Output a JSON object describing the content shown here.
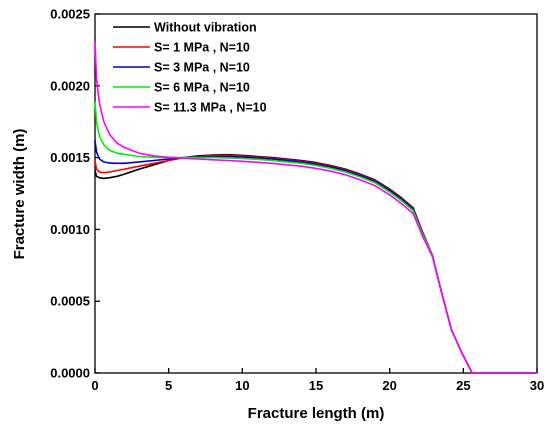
{
  "chart_data": {
    "type": "line",
    "xlabel": "Fracture length (m)",
    "ylabel": "Fracture width (m)",
    "xlim": [
      0,
      30
    ],
    "ylim": [
      0,
      0.0025
    ],
    "xticks": [
      0,
      5,
      10,
      15,
      20,
      25,
      30
    ],
    "xtick_labels": [
      "0",
      "5",
      "10",
      "15",
      "20",
      "25",
      "30"
    ],
    "yticks": [
      0,
      0.0005,
      0.001,
      0.0015,
      0.002,
      0.0025
    ],
    "ytick_labels": [
      "0.0000",
      "0.0005",
      "0.0010",
      "0.0015",
      "0.0020",
      "0.0025"
    ],
    "grid": false,
    "legend_position": "top-left",
    "series": [
      {
        "name": "Without vibration",
        "color": "#000000",
        "x": [
          0,
          0.1,
          0.3,
          0.6,
          1,
          1.5,
          2,
          3,
          4,
          5,
          6,
          7,
          8,
          9,
          10,
          11,
          12,
          13,
          14,
          15,
          16,
          17,
          18,
          19,
          20,
          20.8,
          21.6,
          22.2,
          22.9,
          23.5,
          24.2,
          24.9,
          25.6,
          26,
          27,
          28,
          29,
          30
        ],
        "y": [
          0.00141,
          0.00137,
          0.00136,
          0.001355,
          0.00136,
          0.00137,
          0.001385,
          0.00142,
          0.00145,
          0.00148,
          0.0015,
          0.001512,
          0.001518,
          0.00152,
          0.001515,
          0.001508,
          0.0015,
          0.00149,
          0.00148,
          0.001465,
          0.001445,
          0.00142,
          0.001385,
          0.001345,
          0.00128,
          0.00122,
          0.00115,
          0.00099,
          0.00082,
          0.00057,
          0.0003,
          0.00014,
          0.0,
          0.0,
          0.0,
          0.0,
          0.0,
          0.0
        ]
      },
      {
        "name": "S= 1 MPa , N=10",
        "color": "#ff0000",
        "x": [
          0,
          0.1,
          0.3,
          0.6,
          1,
          1.5,
          2,
          3,
          4,
          5,
          6,
          7,
          8,
          9,
          10,
          11,
          12,
          13,
          14,
          15,
          16,
          17,
          18,
          19,
          20,
          20.8,
          21.6,
          22.2,
          22.9,
          23.5,
          24.2,
          24.9,
          25.6,
          26,
          27,
          28,
          29,
          30
        ],
        "y": [
          0.00148,
          0.00142,
          0.0014,
          0.001395,
          0.0014,
          0.00141,
          0.00142,
          0.00144,
          0.00146,
          0.00148,
          0.0015,
          0.001508,
          0.001513,
          0.001515,
          0.00151,
          0.001503,
          0.001495,
          0.001485,
          0.001475,
          0.00146,
          0.00144,
          0.001415,
          0.00138,
          0.00134,
          0.001275,
          0.001215,
          0.001145,
          0.000985,
          0.00082,
          0.00057,
          0.0003,
          0.00014,
          0.0,
          0.0,
          0.0,
          0.0,
          0.0,
          0.0
        ]
      },
      {
        "name": "S= 3 MPa , N=10",
        "color": "#0000cc",
        "x": [
          0,
          0.1,
          0.3,
          0.6,
          1,
          1.5,
          2,
          3,
          4,
          5,
          6,
          7,
          8,
          9,
          10,
          11,
          12,
          13,
          14,
          15,
          16,
          17,
          18,
          19,
          20,
          20.8,
          21.6,
          22.2,
          22.9,
          23.5,
          24.2,
          24.9,
          25.6,
          26,
          27,
          28,
          29,
          30
        ],
        "y": [
          0.00162,
          0.00154,
          0.00149,
          0.00147,
          0.001462,
          0.00146,
          0.00146,
          0.00147,
          0.00148,
          0.00149,
          0.0015,
          0.001505,
          0.001508,
          0.001508,
          0.001504,
          0.001497,
          0.00149,
          0.00148,
          0.00147,
          0.001455,
          0.001435,
          0.00141,
          0.001375,
          0.001335,
          0.00127,
          0.00121,
          0.00114,
          0.00098,
          0.00082,
          0.00057,
          0.0003,
          0.00014,
          0.0,
          0.0,
          0.0,
          0.0,
          0.0,
          0.0
        ]
      },
      {
        "name": "S= 6 MPa , N=10",
        "color": "#00ee00",
        "x": [
          0,
          0.1,
          0.3,
          0.6,
          1,
          1.5,
          2,
          3,
          4,
          5,
          6,
          7,
          8,
          9,
          10,
          11,
          12,
          13,
          14,
          15,
          16,
          17,
          18,
          19,
          20,
          20.8,
          21.6,
          22.2,
          22.9,
          23.5,
          24.2,
          24.9,
          25.6,
          26,
          27,
          28,
          29,
          30
        ],
        "y": [
          0.00189,
          0.00175,
          0.00165,
          0.00159,
          0.00155,
          0.00153,
          0.001522,
          0.001508,
          0.001502,
          0.0015,
          0.0015,
          0.0015,
          0.0015,
          0.001498,
          0.001494,
          0.001488,
          0.00148,
          0.00147,
          0.00146,
          0.001445,
          0.001425,
          0.0014,
          0.001365,
          0.001325,
          0.00126,
          0.0012,
          0.00113,
          0.000975,
          0.00082,
          0.00057,
          0.0003,
          0.00014,
          0.0,
          0.0,
          0.0,
          0.0,
          0.0,
          0.0
        ]
      },
      {
        "name": "S= 11.3 MPa , N=10",
        "color": "#ff00ff",
        "x": [
          0,
          0.1,
          0.3,
          0.6,
          1,
          1.5,
          2,
          3,
          4,
          5,
          6,
          7,
          8,
          9,
          10,
          11,
          12,
          13,
          14,
          15,
          16,
          17,
          18,
          19,
          20,
          20.8,
          21.6,
          22.2,
          22.9,
          23.5,
          24.2,
          24.9,
          25.6,
          26,
          27,
          28,
          29,
          30
        ],
        "y": [
          0.00231,
          0.00205,
          0.00188,
          0.00175,
          0.00166,
          0.0016,
          0.00157,
          0.00153,
          0.001512,
          0.001502,
          0.001495,
          0.00149,
          0.001485,
          0.00148,
          0.001474,
          0.001467,
          0.00146,
          0.00145,
          0.00144,
          0.001425,
          0.001405,
          0.00138,
          0.001345,
          0.001305,
          0.00124,
          0.00118,
          0.00111,
          0.00096,
          0.00081,
          0.00057,
          0.0003,
          0.00014,
          0.0,
          0.0,
          0.0,
          0.0,
          0.0,
          0.0
        ]
      }
    ]
  }
}
